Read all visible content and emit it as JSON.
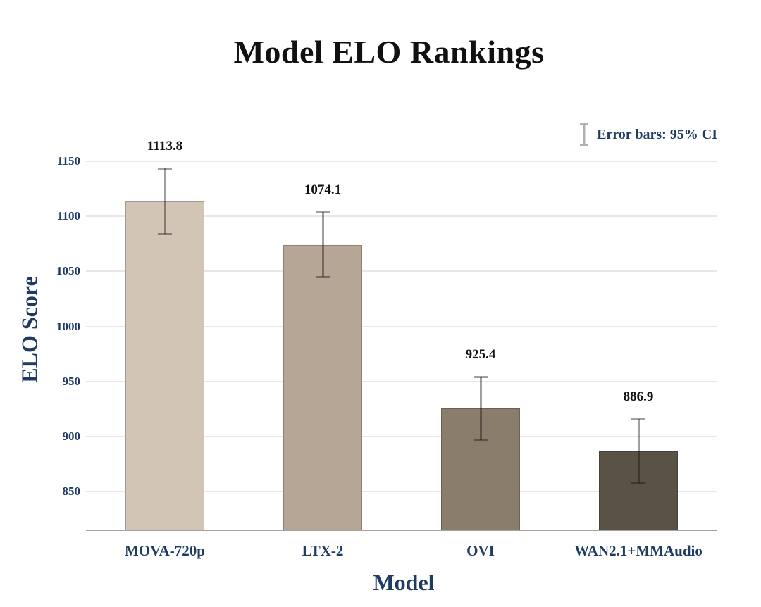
{
  "chart_data": {
    "type": "bar",
    "title": "Model ELO Rankings",
    "xlabel": "Model",
    "ylabel": "ELO Score",
    "categories": [
      "MOVA-720p",
      "LTX-2",
      "OVI",
      "WAN2.1+MMAudio"
    ],
    "values": [
      1113.8,
      1074.1,
      925.4,
      886.9
    ],
    "value_labels": [
      "1113.8",
      "1074.1",
      "925.4",
      "886.9"
    ],
    "error_95ci": [
      30.0,
      29.7,
      28.7,
      29.3
    ],
    "bar_colors": [
      "#d2c5b6",
      "#b5a695",
      "#8a7d6c",
      "#5a5244"
    ],
    "yticks": [
      850,
      900,
      950,
      1000,
      1050,
      1100,
      1150
    ],
    "ylim": [
      815,
      1185
    ],
    "grid": "horizontal",
    "legend": {
      "label": "Error bars: 95% CI",
      "position": "top-right"
    },
    "colors": {
      "title_text": "#111111",
      "axis_text": "#1f3a63",
      "value_text": "#111111",
      "gridline": "#e7e7e7",
      "axis_line": "#a3a3a3",
      "error_bar": "rgba(17,17,17,0.40)",
      "legend_icon": "#b0b0b0",
      "background": "#ffffff"
    }
  }
}
